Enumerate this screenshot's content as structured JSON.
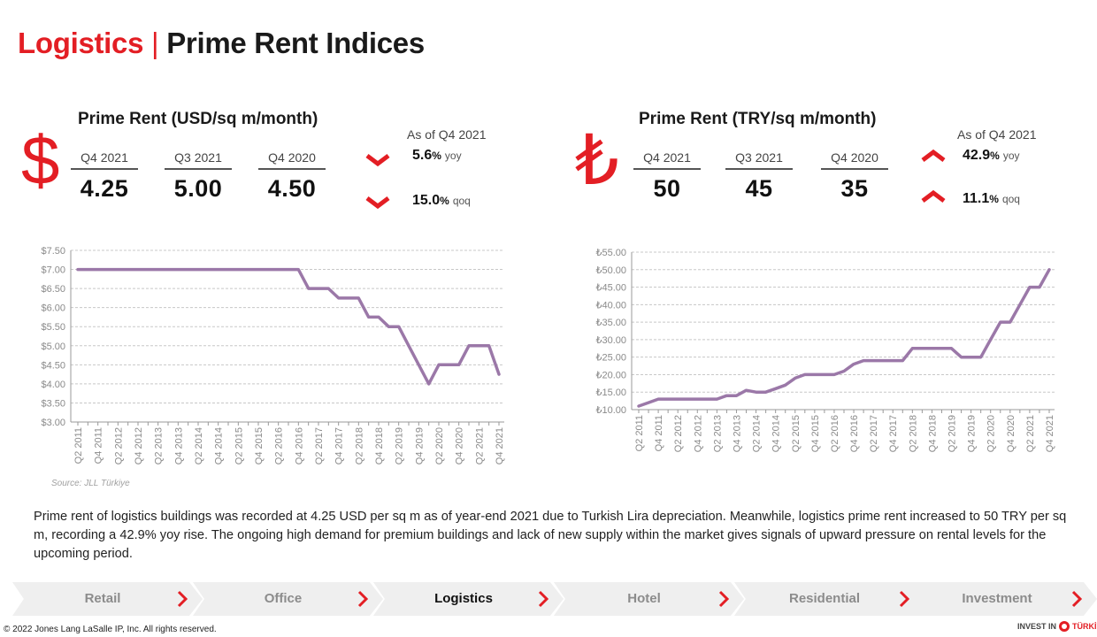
{
  "header": {
    "section": "Logistics",
    "separator": "|",
    "title": "Prime Rent Indices"
  },
  "usd": {
    "title": "Prime Rent (USD/sq m/month)",
    "symbol": "$",
    "periods": [
      {
        "label": "Q4 2021",
        "value": "4.25"
      },
      {
        "label": "Q3 2021",
        "value": "5.00"
      },
      {
        "label": "Q4 2020",
        "value": "4.50"
      }
    ],
    "as_of": "As of Q4 2021",
    "yoy": {
      "value": "5.6",
      "pct": "%",
      "unit": "yoy",
      "direction": "down"
    },
    "qoq": {
      "value": "15.0",
      "pct": "%",
      "unit": "qoq",
      "direction": "down"
    }
  },
  "try": {
    "title": "Prime Rent (TRY/sq m/month)",
    "symbol": "₺",
    "periods": [
      {
        "label": "Q4 2021",
        "value": "50"
      },
      {
        "label": "Q3 2021",
        "value": "45"
      },
      {
        "label": "Q4 2020",
        "value": "35"
      }
    ],
    "as_of": "As of Q4 2021",
    "yoy": {
      "value": "42.9",
      "pct": "%",
      "unit": "yoy",
      "direction": "up"
    },
    "qoq": {
      "value": "11.1",
      "pct": "%",
      "unit": "qoq",
      "direction": "up"
    }
  },
  "chart_data": [
    {
      "type": "line",
      "title": "",
      "xlabel": "",
      "ylabel": "",
      "ylim": [
        3.0,
        7.5
      ],
      "y_ticks": [
        "$3.00",
        "$3.50",
        "$4.00",
        "$4.50",
        "$5.00",
        "$5.50",
        "$6.00",
        "$6.50",
        "$7.00",
        "$7.50"
      ],
      "y_tick_values": [
        3.0,
        3.5,
        4.0,
        4.5,
        5.0,
        5.5,
        6.0,
        6.5,
        7.0,
        7.5
      ],
      "x": [
        "Q2 2011",
        "Q3 2011",
        "Q4 2011",
        "Q1 2012",
        "Q2 2012",
        "Q3 2012",
        "Q4 2012",
        "Q1 2013",
        "Q2 2013",
        "Q3 2013",
        "Q4 2013",
        "Q1 2014",
        "Q2 2014",
        "Q3 2014",
        "Q4 2014",
        "Q1 2015",
        "Q2 2015",
        "Q3 2015",
        "Q4 2015",
        "Q1 2016",
        "Q2 2016",
        "Q3 2016",
        "Q4 2016",
        "Q1 2017",
        "Q2 2017",
        "Q3 2017",
        "Q4 2017",
        "Q1 2018",
        "Q2 2018",
        "Q3 2018",
        "Q4 2018",
        "Q1 2019",
        "Q2 2019",
        "Q3 2019",
        "Q4 2019",
        "Q1 2020",
        "Q2 2020",
        "Q3 2020",
        "Q4 2020",
        "Q1 2021",
        "Q2 2021",
        "Q3 2021",
        "Q4 2021"
      ],
      "x_tick_labels": [
        "Q2 2011",
        "Q4 2011",
        "Q2 2012",
        "Q4 2012",
        "Q2 2013",
        "Q4 2013",
        "Q2 2014",
        "Q4 2014",
        "Q2 2015",
        "Q4 2015",
        "Q2 2016",
        "Q4 2016",
        "Q2 2017",
        "Q4 2017",
        "Q2 2018",
        "Q4 2018",
        "Q2 2019",
        "Q4 2019",
        "Q2 2020",
        "Q4 2020",
        "Q2 2021",
        "Q4 2021"
      ],
      "series": [
        {
          "values": [
            7.0,
            7.0,
            7.0,
            7.0,
            7.0,
            7.0,
            7.0,
            7.0,
            7.0,
            7.0,
            7.0,
            7.0,
            7.0,
            7.0,
            7.0,
            7.0,
            7.0,
            7.0,
            7.0,
            7.0,
            7.0,
            7.0,
            7.0,
            6.5,
            6.5,
            6.5,
            6.25,
            6.25,
            6.25,
            5.75,
            5.75,
            5.5,
            5.5,
            5.0,
            4.5,
            4.0,
            4.5,
            4.5,
            4.5,
            5.0,
            5.0,
            5.0,
            4.25
          ]
        }
      ],
      "grid": true,
      "line_color": "#9b78a8"
    },
    {
      "type": "line",
      "title": "",
      "xlabel": "",
      "ylabel": "",
      "ylim": [
        10,
        55
      ],
      "y_ticks": [
        "₺10.00",
        "₺15.00",
        "₺20.00",
        "₺25.00",
        "₺30.00",
        "₺35.00",
        "₺40.00",
        "₺45.00",
        "₺50.00",
        "₺55.00"
      ],
      "y_tick_values": [
        10,
        15,
        20,
        25,
        30,
        35,
        40,
        45,
        50,
        55
      ],
      "x": [
        "Q2 2011",
        "Q3 2011",
        "Q4 2011",
        "Q1 2012",
        "Q2 2012",
        "Q3 2012",
        "Q4 2012",
        "Q1 2013",
        "Q2 2013",
        "Q3 2013",
        "Q4 2013",
        "Q1 2014",
        "Q2 2014",
        "Q3 2014",
        "Q4 2014",
        "Q1 2015",
        "Q2 2015",
        "Q3 2015",
        "Q4 2015",
        "Q1 2016",
        "Q2 2016",
        "Q3 2016",
        "Q4 2016",
        "Q1 2017",
        "Q2 2017",
        "Q3 2017",
        "Q4 2017",
        "Q1 2018",
        "Q2 2018",
        "Q3 2018",
        "Q4 2018",
        "Q1 2019",
        "Q2 2019",
        "Q3 2019",
        "Q4 2019",
        "Q1 2020",
        "Q2 2020",
        "Q3 2020",
        "Q4 2020",
        "Q1 2021",
        "Q2 2021",
        "Q3 2021",
        "Q4 2021"
      ],
      "x_tick_labels": [
        "Q2 2011",
        "Q4 2011",
        "Q2 2012",
        "Q4 2012",
        "Q2 2013",
        "Q4 2013",
        "Q2 2014",
        "Q4 2014",
        "Q2 2015",
        "Q4 2015",
        "Q2 2016",
        "Q4 2016",
        "Q2 2017",
        "Q4 2017",
        "Q2 2018",
        "Q4 2018",
        "Q2 2019",
        "Q4 2019",
        "Q2 2020",
        "Q4 2020",
        "Q2 2021",
        "Q4 2021"
      ],
      "series": [
        {
          "values": [
            11,
            12,
            13,
            13,
            13,
            13,
            13,
            13,
            13,
            14,
            14,
            15.5,
            15,
            15,
            16,
            17,
            19,
            20,
            20,
            20,
            20,
            21,
            23,
            24,
            24,
            24,
            24,
            24,
            27.5,
            27.5,
            27.5,
            27.5,
            27.5,
            25,
            25,
            25,
            30,
            35,
            35,
            40,
            45,
            45,
            50
          ]
        }
      ],
      "grid": true,
      "line_color": "#9b78a8"
    }
  ],
  "source": "Source: JLL Türkiye",
  "paragraph": "Prime rent of logistics buildings was recorded at 4.25 USD per sq m as of year-end 2021 due to Turkish Lira depreciation. Meanwhile, logistics prime rent increased to 50 TRY per sq m, recording a 42.9% yoy rise. The ongoing high demand for premium buildings and lack of new supply within the market gives signals of upward pressure on rental levels for the upcoming period.",
  "nav": [
    {
      "label": "Retail",
      "active": false
    },
    {
      "label": "Office",
      "active": false
    },
    {
      "label": "Logistics",
      "active": true
    },
    {
      "label": "Hotel",
      "active": false
    },
    {
      "label": "Residential",
      "active": false
    },
    {
      "label": "Investment",
      "active": false
    }
  ],
  "footer": {
    "copyright": "© 2022 Jones Lang LaSalle IP, Inc. All rights reserved.",
    "logo_left": "INVEST IN",
    "logo_right": "TÜRKİYE"
  },
  "colors": {
    "accent": "#e31e24",
    "line": "#9b78a8",
    "grid": "#c8c8c8",
    "nav_bg": "#efefef"
  }
}
